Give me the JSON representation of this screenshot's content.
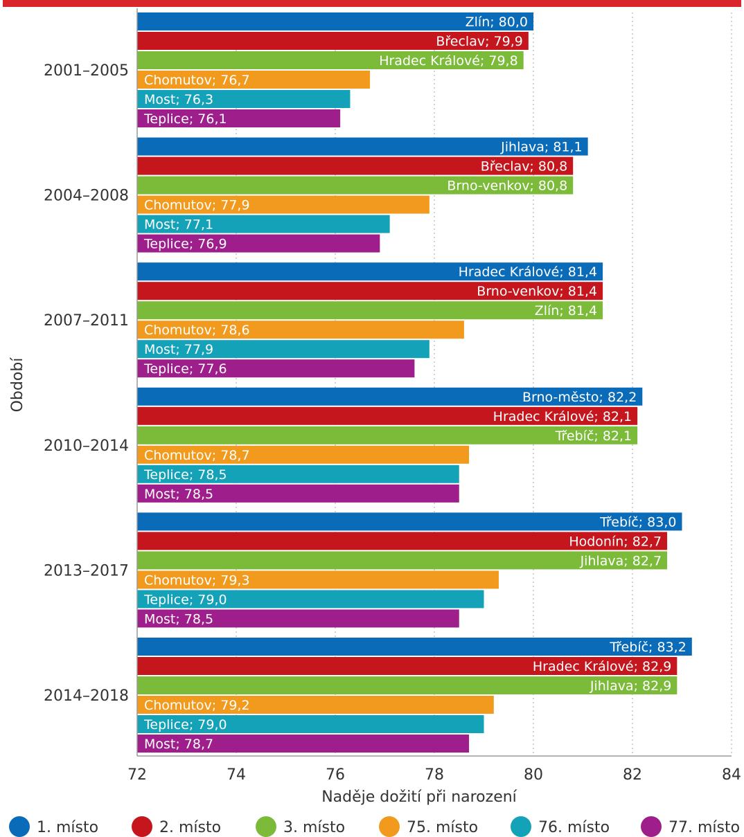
{
  "chart_data": {
    "type": "bar",
    "orientation": "horizontal",
    "xlabel": "Naděje dožití při narození",
    "ylabel": "Období",
    "xlim": [
      72,
      84
    ],
    "xticks": [
      72,
      74,
      76,
      78,
      80,
      82,
      84
    ],
    "grid": true,
    "legend_position": "bottom",
    "categories": [
      "2001–2005",
      "2004–2008",
      "2007–2011",
      "2010–2014",
      "2013–2017",
      "2014–2018"
    ],
    "series": [
      {
        "name": "1. místo",
        "color": "#0a6bb8",
        "values": [
          80.0,
          81.1,
          81.4,
          82.2,
          83.0,
          83.2
        ],
        "labels": [
          "Zlín; 80,0",
          "Jihlava; 81,1",
          "Hradec Králové; 81,4",
          "Brno-město; 82,2",
          "Třebíč; 83,0",
          "Třebíč; 83,2"
        ]
      },
      {
        "name": "2. místo",
        "color": "#c5161d",
        "values": [
          79.9,
          80.8,
          81.4,
          82.1,
          82.7,
          82.9
        ],
        "labels": [
          "Břeclav; 79,9",
          "Břeclav; 80,8",
          "Brno-venkov; 81,4",
          "Hradec Králové; 82,1",
          "Hodonín; 82,7",
          "Hradec Králové; 82,9"
        ]
      },
      {
        "name": "3. místo",
        "color": "#7cbb3a",
        "values": [
          79.8,
          80.8,
          81.4,
          82.1,
          82.7,
          82.9
        ],
        "labels": [
          "Hradec Králové; 79,8",
          "Brno-venkov; 80,8",
          "Zlín; 81,4",
          "Třebíč; 82,1",
          "Jihlava; 82,7",
          "Jihlava; 82,9"
        ]
      },
      {
        "name": "75. místo",
        "color": "#f29a1d",
        "values": [
          76.7,
          77.9,
          78.6,
          78.7,
          79.3,
          79.2
        ],
        "labels": [
          "Chomutov; 76,7",
          "Chomutov; 77,9",
          "Chomutov; 78,6",
          "Chomutov; 78,7",
          "Chomutov; 79,3",
          "Chomutov; 79,2"
        ]
      },
      {
        "name": "76. místo",
        "color": "#14a2b8",
        "values": [
          76.3,
          77.1,
          77.9,
          78.5,
          79.0,
          79.0
        ],
        "labels": [
          "Most; 76,3",
          "Most; 77,1",
          "Most; 77,9",
          "Teplice; 78,5",
          "Teplice; 79,0",
          "Teplice; 79,0"
        ]
      },
      {
        "name": "77. místo",
        "color": "#9e1f8c",
        "values": [
          76.1,
          76.9,
          77.6,
          78.5,
          78.5,
          78.7
        ],
        "labels": [
          "Teplice; 76,1",
          "Teplice; 76,9",
          "Teplice; 77,6",
          "Most; 78,5",
          "Most; 78,5",
          "Most; 78,7"
        ]
      }
    ]
  },
  "colors": {
    "header_band": "#d9262d"
  }
}
